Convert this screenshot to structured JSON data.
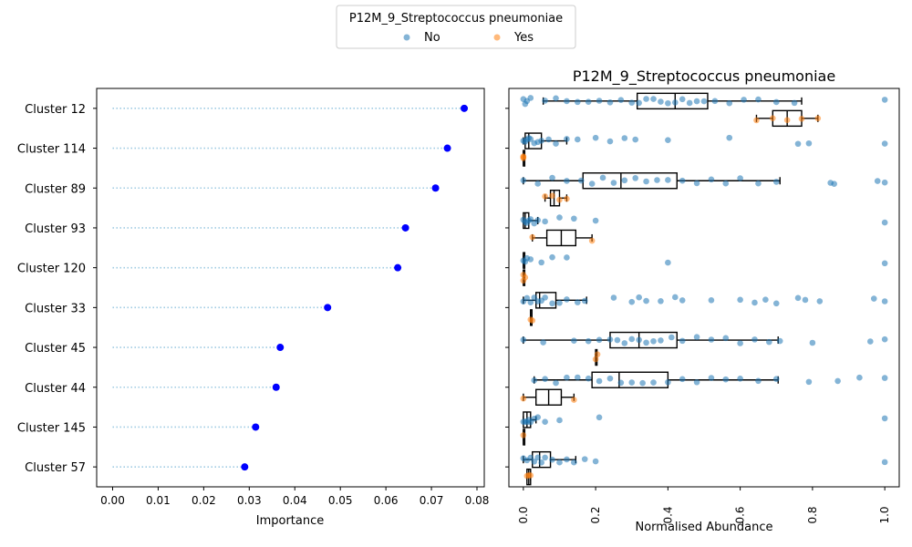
{
  "legend": {
    "title": "P12M_9_Streptococcus pneumoniae",
    "entries": [
      {
        "label": "No",
        "color": "#1f77b4"
      },
      {
        "label": "Yes",
        "color": "#ff7f0e"
      }
    ]
  },
  "chart_data": [
    {
      "type": "lollipop",
      "clusters": [
        "Cluster 12",
        "Cluster 114",
        "Cluster 89",
        "Cluster 93",
        "Cluster 120",
        "Cluster 33",
        "Cluster 45",
        "Cluster 44",
        "Cluster 145",
        "Cluster 57"
      ],
      "values": [
        0.0772,
        0.0735,
        0.0709,
        0.0643,
        0.0626,
        0.0472,
        0.0368,
        0.0359,
        0.0314,
        0.029
      ],
      "xlabel": "Importance",
      "ylabel": "",
      "xlim": [
        -0.0035,
        0.0816
      ],
      "xticks": [
        "0.00",
        "0.01",
        "0.02",
        "0.03",
        "0.04",
        "0.05",
        "0.06",
        "0.07",
        "0.08"
      ],
      "stem_color": "#9ecae1",
      "marker_color": "#0000ff",
      "grid": false
    },
    {
      "type": "box-strip",
      "title": "P12M_9_Streptococcus pneumoniae",
      "xlabel": "Normalised Abundance",
      "xlim": [
        -0.04,
        1.04
      ],
      "xticks": [
        "0.0",
        "0.2",
        "0.4",
        "0.6",
        "0.8",
        "1.0"
      ],
      "series_colors": {
        "No": "#1f77b4",
        "Yes": "#ff7f0e"
      },
      "groups": [
        {
          "cluster": "Cluster 12",
          "No": {
            "whislo": 0.055,
            "q1": 0.315,
            "med": 0.42,
            "q3": 0.51,
            "whishi": 0.77,
            "points": [
              0.0,
              0.005,
              0.01,
              0.02,
              0.06,
              0.09,
              0.12,
              0.15,
              0.18,
              0.21,
              0.24,
              0.27,
              0.3,
              0.32,
              0.34,
              0.36,
              0.38,
              0.4,
              0.42,
              0.44,
              0.46,
              0.48,
              0.5,
              0.53,
              0.57,
              0.61,
              0.65,
              0.7,
              0.75,
              1.0
            ]
          },
          "Yes": {
            "whislo": 0.645,
            "q1": 0.69,
            "med": 0.73,
            "q3": 0.77,
            "whishi": 0.815,
            "points": [
              0.645,
              0.69,
              0.73,
              0.77,
              0.815
            ]
          }
        },
        {
          "cluster": "Cluster 114",
          "No": {
            "whislo": 0.0,
            "q1": 0.005,
            "med": 0.015,
            "q3": 0.05,
            "whishi": 0.12,
            "points": [
              0.0,
              0.005,
              0.01,
              0.015,
              0.02,
              0.03,
              0.04,
              0.05,
              0.07,
              0.09,
              0.12,
              0.15,
              0.2,
              0.24,
              0.28,
              0.31,
              0.4,
              0.57,
              0.76,
              0.79,
              1.0
            ]
          },
          "Yes": {
            "whislo": 0.0,
            "q1": 0.0,
            "med": 0.0,
            "q3": 0.0,
            "whishi": 0.0,
            "points": [
              0.0,
              0.0,
              0.0
            ]
          }
        },
        {
          "cluster": "Cluster 89",
          "No": {
            "whislo": 0.0,
            "q1": 0.165,
            "med": 0.27,
            "q3": 0.425,
            "whishi": 0.71,
            "points": [
              0.0,
              0.04,
              0.08,
              0.12,
              0.16,
              0.19,
              0.22,
              0.25,
              0.28,
              0.31,
              0.34,
              0.37,
              0.4,
              0.44,
              0.48,
              0.52,
              0.56,
              0.6,
              0.65,
              0.7,
              0.85,
              0.86,
              0.98,
              1.0
            ]
          },
          "Yes": {
            "whislo": 0.06,
            "q1": 0.075,
            "med": 0.085,
            "q3": 0.1,
            "whishi": 0.12,
            "points": [
              0.06,
              0.08,
              0.1,
              0.12
            ]
          }
        },
        {
          "cluster": "Cluster 93",
          "No": {
            "whislo": 0.0,
            "q1": 0.0,
            "med": 0.005,
            "q3": 0.015,
            "whishi": 0.04,
            "points": [
              0.0,
              0.005,
              0.01,
              0.015,
              0.02,
              0.03,
              0.04,
              0.06,
              0.1,
              0.14,
              0.2,
              1.0
            ]
          },
          "Yes": {
            "whislo": 0.025,
            "q1": 0.065,
            "med": 0.105,
            "q3": 0.145,
            "whishi": 0.19,
            "points": [
              0.025,
              0.19
            ]
          }
        },
        {
          "cluster": "Cluster 120",
          "No": {
            "whislo": 0.0,
            "q1": 0.0,
            "med": 0.0,
            "q3": 0.0,
            "whishi": 0.0,
            "points": [
              0.0,
              0.005,
              0.01,
              0.02,
              0.05,
              0.08,
              0.12,
              0.4,
              1.0
            ]
          },
          "Yes": {
            "whislo": 0.0,
            "q1": 0.0,
            "med": 0.0,
            "q3": 0.0,
            "whishi": 0.0,
            "points": [
              0.0,
              0.0,
              0.005
            ]
          }
        },
        {
          "cluster": "Cluster 33",
          "No": {
            "whislo": 0.0,
            "q1": 0.035,
            "med": 0.045,
            "q3": 0.09,
            "whishi": 0.175,
            "points": [
              0.0,
              0.01,
              0.02,
              0.03,
              0.04,
              0.05,
              0.06,
              0.08,
              0.1,
              0.12,
              0.15,
              0.17,
              0.25,
              0.3,
              0.32,
              0.34,
              0.38,
              0.42,
              0.44,
              0.52,
              0.6,
              0.64,
              0.67,
              0.7,
              0.76,
              0.78,
              0.82,
              0.97,
              1.0
            ]
          },
          "Yes": {
            "whislo": 0.02,
            "q1": 0.02,
            "med": 0.02,
            "q3": 0.02,
            "whishi": 0.02,
            "points": [
              0.02,
              0.025
            ]
          }
        },
        {
          "cluster": "Cluster 45",
          "No": {
            "whislo": 0.0,
            "q1": 0.24,
            "med": 0.32,
            "q3": 0.425,
            "whishi": 0.705,
            "points": [
              0.0,
              0.055,
              0.14,
              0.18,
              0.21,
              0.24,
              0.26,
              0.28,
              0.3,
              0.32,
              0.34,
              0.36,
              0.38,
              0.41,
              0.44,
              0.48,
              0.52,
              0.56,
              0.6,
              0.64,
              0.68,
              0.71,
              0.8,
              0.96,
              1.0
            ]
          },
          "Yes": {
            "whislo": 0.2,
            "q1": 0.2,
            "med": 0.2,
            "q3": 0.2,
            "whishi": 0.2,
            "points": [
              0.2,
              0.205
            ]
          }
        },
        {
          "cluster": "Cluster 44",
          "No": {
            "whislo": 0.03,
            "q1": 0.19,
            "med": 0.265,
            "q3": 0.4,
            "whishi": 0.705,
            "points": [
              0.03,
              0.06,
              0.09,
              0.12,
              0.15,
              0.18,
              0.21,
              0.24,
              0.27,
              0.3,
              0.33,
              0.36,
              0.4,
              0.44,
              0.48,
              0.52,
              0.56,
              0.6,
              0.65,
              0.7,
              0.79,
              0.87,
              0.93,
              1.0
            ]
          },
          "Yes": {
            "whislo": 0.0,
            "q1": 0.035,
            "med": 0.07,
            "q3": 0.105,
            "whishi": 0.14,
            "points": [
              0.0,
              0.14
            ]
          }
        },
        {
          "cluster": "Cluster 145",
          "No": {
            "whislo": 0.0,
            "q1": 0.0,
            "med": 0.01,
            "q3": 0.02,
            "whishi": 0.035,
            "points": [
              0.0,
              0.005,
              0.01,
              0.015,
              0.02,
              0.03,
              0.04,
              0.06,
              0.1,
              0.21,
              1.0
            ]
          },
          "Yes": {
            "whislo": 0.0,
            "q1": 0.0,
            "med": 0.0,
            "q3": 0.0,
            "whishi": 0.0,
            "points": [
              0.0
            ]
          }
        },
        {
          "cluster": "Cluster 57",
          "No": {
            "whislo": 0.0,
            "q1": 0.025,
            "med": 0.045,
            "q3": 0.075,
            "whishi": 0.145,
            "points": [
              0.0,
              0.01,
              0.02,
              0.03,
              0.04,
              0.05,
              0.06,
              0.08,
              0.1,
              0.12,
              0.14,
              0.17,
              0.2,
              1.0
            ]
          },
          "Yes": {
            "whislo": 0.01,
            "q1": 0.01,
            "med": 0.015,
            "q3": 0.02,
            "whishi": 0.02,
            "points": [
              0.01,
              0.015,
              0.02
            ]
          }
        }
      ]
    }
  ]
}
